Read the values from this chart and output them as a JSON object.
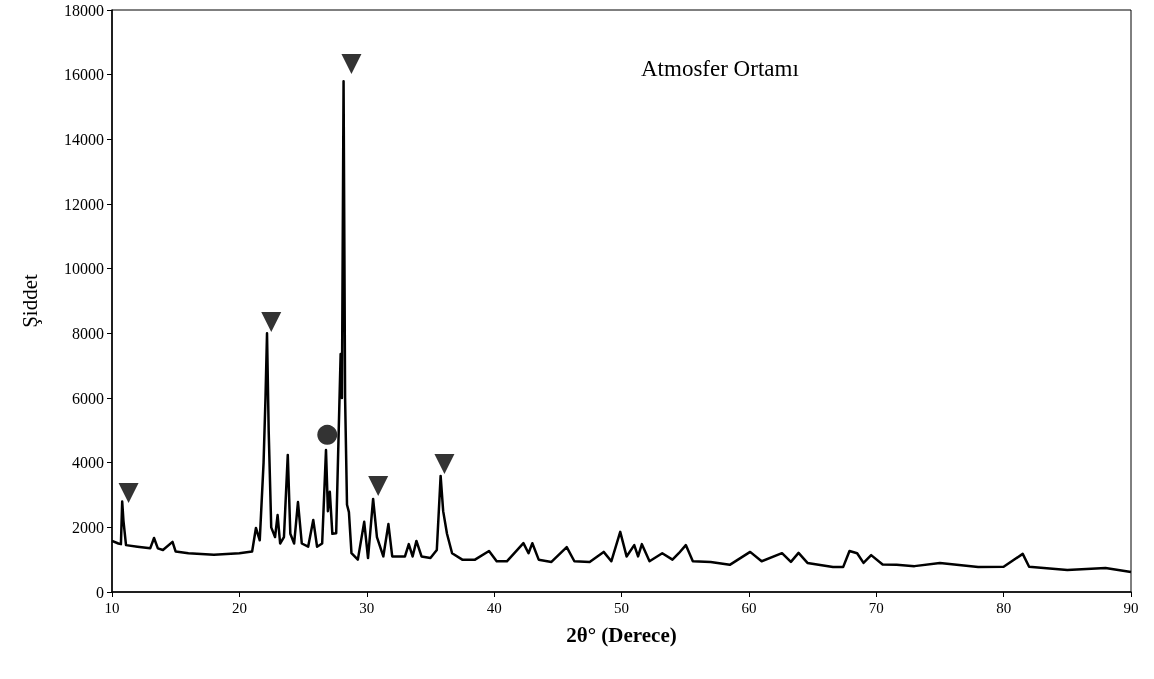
{
  "chart_data": {
    "type": "line",
    "title": "Atmosfer Ortamı",
    "xlabel": "2θ° (Derece)",
    "ylabel": "Şiddet",
    "xlim": [
      10,
      90
    ],
    "xticks": [
      10,
      20,
      30,
      40,
      50,
      60,
      70,
      80,
      90
    ],
    "ylim": [
      0,
      18000
    ],
    "yticks": [
      0,
      2000,
      4000,
      6000,
      8000,
      10000,
      12000,
      14000,
      16000,
      18000
    ],
    "grid": false,
    "marker": "none",
    "series": [
      {
        "color": "#000000",
        "x": [
          10,
          10.5,
          10.7,
          10.8,
          10.9,
          11.1,
          12,
          13,
          13.3,
          13.6,
          14,
          14.75,
          15,
          16,
          18,
          20,
          21,
          21.3,
          21.6,
          21.9,
          22.05,
          22.17,
          22.3,
          22.5,
          22.8,
          23.0,
          23.2,
          23.5,
          23.8,
          24.0,
          24.3,
          24.6,
          24.9,
          25.4,
          25.8,
          26.1,
          26.5,
          26.8,
          26.95,
          27.1,
          27.3,
          27.6,
          27.8,
          27.95,
          28.05,
          28.18,
          28.3,
          28.45,
          28.6,
          28.8,
          29.3,
          29.8,
          30.1,
          30.5,
          30.8,
          31.3,
          31.7,
          32.0,
          33.0,
          33.3,
          33.6,
          33.9,
          34.3,
          35.0,
          35.5,
          35.8,
          36.0,
          36.3,
          36.7,
          37.5,
          38.5,
          39.6,
          40.2,
          41.0,
          42.3,
          42.7,
          43.0,
          43.5,
          44.5,
          45.7,
          46.3,
          47.5,
          48.6,
          49.2,
          49.9,
          50.4,
          51.0,
          51.3,
          51.6,
          52.2,
          53.2,
          54.0,
          54.5,
          55.05,
          55.6,
          57,
          58.5,
          60.1,
          61,
          62.6,
          63.3,
          63.9,
          64.6,
          66.6,
          67.4,
          67.9,
          68.5,
          69.0,
          69.6,
          70.5,
          71.6,
          73,
          75,
          78,
          80,
          81.5,
          82,
          85,
          88,
          90
        ],
        "values": [
          1580,
          1500,
          1480,
          2800,
          2200,
          1450,
          1400,
          1350,
          1670,
          1350,
          1300,
          1550,
          1250,
          1200,
          1150,
          1200,
          1250,
          1980,
          1600,
          4000,
          6000,
          8000,
          5000,
          2000,
          1700,
          2380,
          1500,
          1700,
          4240,
          1800,
          1500,
          2780,
          1500,
          1400,
          2230,
          1400,
          1500,
          4390,
          2500,
          3100,
          1800,
          1820,
          5000,
          7360,
          6000,
          15800,
          6000,
          2700,
          2470,
          1200,
          1000,
          2170,
          1050,
          2880,
          1700,
          1100,
          2100,
          1100,
          1100,
          1480,
          1100,
          1580,
          1100,
          1050,
          1300,
          3590,
          2500,
          1800,
          1200,
          1000,
          1000,
          1270,
          950,
          950,
          1510,
          1200,
          1510,
          1000,
          930,
          1390,
          950,
          930,
          1240,
          950,
          1860,
          1100,
          1450,
          1100,
          1480,
          950,
          1200,
          1000,
          1200,
          1450,
          950,
          930,
          840,
          1240,
          950,
          1200,
          930,
          1210,
          900,
          770,
          770,
          1270,
          1200,
          900,
          1140,
          850,
          840,
          800,
          900,
          770,
          780,
          1180,
          780,
          680,
          740,
          620
        ]
      },
      {
        "type": "scatter",
        "marker": "triangle",
        "color": "#000000",
        "x": [
          22.5,
          28.8,
          30.9,
          36.1
        ],
        "values": [
          8350,
          16330,
          3280,
          3960
        ]
      },
      {
        "type": "scatter",
        "marker": "circle",
        "color": "#000000",
        "x": [
          26.9
        ],
        "values": [
          4860
        ]
      },
      {
        "type": "scatter",
        "marker": "triangle",
        "color": "#000000",
        "x": [
          11.3
        ],
        "values": [
          3060
        ]
      }
    ]
  }
}
